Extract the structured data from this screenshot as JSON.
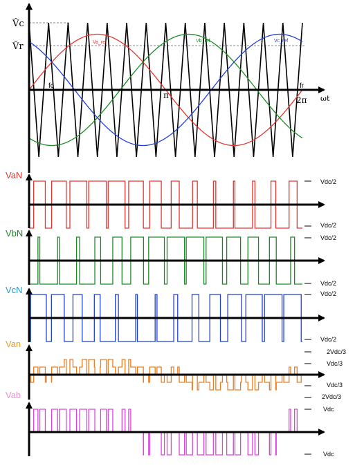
{
  "top_panel": {
    "vc_label": "V̂c",
    "vr_label": "V̂r",
    "fc_label": "fc",
    "fr_label": "fr",
    "pi_label": "π",
    "two_pi_label": "2π",
    "wt_label": "ωt",
    "va_ref_label": "Va_ref",
    "vb_ref_label": "Vb_ref",
    "vc_ref_label": "Vc_ref"
  },
  "panels": {
    "vaN": {
      "title": "VaN",
      "top_label": "Vdc/2",
      "bottom_label": "Vdc/2"
    },
    "vbN": {
      "title": "VbN",
      "top_label": "Vdc/2",
      "bottom_label": "Vdc/2"
    },
    "vcN": {
      "title": "VcN",
      "top_label": "Vdc/2",
      "bottom_label": "Vdc/2"
    },
    "van": {
      "title": "Van",
      "level_labels": [
        "2Vdc/3",
        "Vdc/3",
        "Vdc/3",
        "2Vdc/3"
      ]
    },
    "vab": {
      "title": "Vab",
      "top_label": "Vdc",
      "bottom_label": "Vdc"
    }
  },
  "colors": {
    "phase_a": "#e8342f",
    "phase_b": "#1b8a26",
    "phase_c": "#1f3fd6",
    "van": "#ee7d1f",
    "vab": "#dd44dd",
    "carrier": "#000000"
  },
  "signal": {
    "carrier_cycles": 14,
    "modulation_index": 0.83
  }
}
